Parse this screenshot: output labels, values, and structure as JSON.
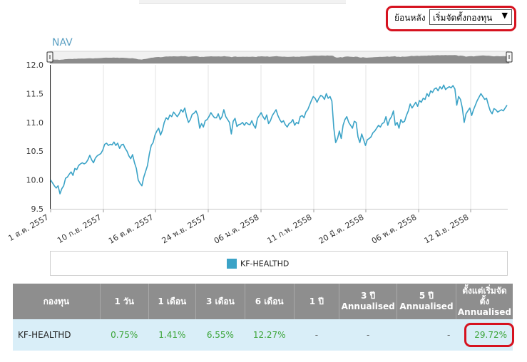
{
  "range_selector": {
    "label": "ย้อนหลัง",
    "selected": "เริ่มจัดตั้งกองทุน",
    "arrow_glyph": "▼"
  },
  "chart_data": {
    "type": "line",
    "title": "NAV",
    "ylim": [
      9.5,
      12.0
    ],
    "yticks": [
      "12.0",
      "11.5",
      "11.0",
      "10.5",
      "10.0",
      "9.5"
    ],
    "xlabels": [
      "1 ส.ค. 2557",
      "10 ก.ย. 2557",
      "16 ต.ค. 2557",
      "24 พ.ย. 2557",
      "06 ม.ค. 2558",
      "11 ก.พ. 2558",
      "20 มี.ค. 2558",
      "06 พ.ค. 2558",
      "12 มิ.ย. 2558"
    ],
    "grid": "vertical",
    "legend": "bottom-center",
    "colors": {
      "line": "#3ba3c7",
      "navigator": "#8c8c8c"
    },
    "series": [
      {
        "name": "KF-HEALTHD",
        "values": [
          10.0,
          9.95,
          9.9,
          9.86,
          9.9,
          9.76,
          9.85,
          9.9,
          10.03,
          10.05,
          10.1,
          10.14,
          10.08,
          10.2,
          10.18,
          10.25,
          10.28,
          10.3,
          10.28,
          10.3,
          10.35,
          10.43,
          10.35,
          10.3,
          10.38,
          10.42,
          10.44,
          10.46,
          10.52,
          10.62,
          10.64,
          10.6,
          10.62,
          10.61,
          10.66,
          10.6,
          10.64,
          10.55,
          10.61,
          10.62,
          10.55,
          10.5,
          10.42,
          10.37,
          10.44,
          10.3,
          10.2,
          10.0,
          9.94,
          9.9,
          10.05,
          10.15,
          10.25,
          10.45,
          10.6,
          10.65,
          10.78,
          10.85,
          10.9,
          10.78,
          10.86,
          11.0,
          11.08,
          11.05,
          11.13,
          11.1,
          11.18,
          11.14,
          11.1,
          11.15,
          11.22,
          11.18,
          11.25,
          11.1,
          11.0,
          11.05,
          11.14,
          11.16,
          11.2,
          11.12,
          10.9,
          10.98,
          10.92,
          11.03,
          11.05,
          11.1,
          11.17,
          11.12,
          11.08,
          11.08,
          11.15,
          11.05,
          11.1,
          11.22,
          11.1,
          11.05,
          11.0,
          10.8,
          11.02,
          11.07,
          10.93,
          10.96,
          10.97,
          11.0,
          10.95,
          11.0,
          10.97,
          10.96,
          11.03,
          10.95,
          10.9,
          11.07,
          11.12,
          11.17,
          11.1,
          11.05,
          11.13,
          10.98,
          11.03,
          11.12,
          11.17,
          11.22,
          11.12,
          11.05,
          11.0,
          11.03,
          10.96,
          10.92,
          10.98,
          11.0,
          11.05,
          10.95,
          11.0,
          10.98,
          11.1,
          11.12,
          11.08,
          11.18,
          11.22,
          11.3,
          11.38,
          11.45,
          11.42,
          11.35,
          11.42,
          11.47,
          11.45,
          11.4,
          11.5,
          11.42,
          11.45,
          11.37,
          10.9,
          10.65,
          10.72,
          10.85,
          10.72,
          10.95,
          11.05,
          11.1,
          11.0,
          10.95,
          10.9,
          11.02,
          11.0,
          10.75,
          10.65,
          10.8,
          10.7,
          10.6,
          10.7,
          10.72,
          10.75,
          10.82,
          10.85,
          10.9,
          10.95,
          10.92,
          10.98,
          11.0,
          11.1,
          10.95,
          11.05,
          11.1,
          11.2,
          10.95,
          11.0,
          10.9,
          11.05,
          11.0,
          11.02,
          11.12,
          11.2,
          11.32,
          11.25,
          11.3,
          11.35,
          11.28,
          11.38,
          11.35,
          11.42,
          11.4,
          11.5,
          11.45,
          11.55,
          11.52,
          11.58,
          11.6,
          11.55,
          11.62,
          11.58,
          11.65,
          11.57,
          11.6,
          11.62,
          11.6,
          11.64,
          11.58,
          11.3,
          11.45,
          11.4,
          11.25,
          11.0,
          11.15,
          11.2,
          11.25,
          11.12,
          11.22,
          11.3,
          11.38,
          11.44,
          11.5,
          11.45,
          11.4,
          11.42,
          11.3,
          11.2,
          11.15,
          11.24,
          11.22,
          11.18,
          11.2,
          11.22,
          11.2,
          11.25,
          11.3
        ]
      }
    ]
  },
  "table": {
    "headers": [
      "กองทุน",
      "1 วัน",
      "1 เดือน",
      "3 เดือน",
      "6 เดือน",
      "1 ปี",
      "3 ปี",
      "5 ปี",
      "ตั้งแต่เริ่มจัด"
    ],
    "sub_headers": {
      "3y_a": "Annualised",
      "5y_a": "Annualised",
      "since_a": "ตั้ง",
      "since_b": "Annualised"
    },
    "row": {
      "fund": "KF-HEALTHD",
      "d1": "0.75%",
      "m1": "1.41%",
      "m3": "6.55%",
      "m6": "12.27%",
      "y1": "-",
      "y3": "-",
      "y5": "-",
      "since": "29.72%"
    }
  }
}
